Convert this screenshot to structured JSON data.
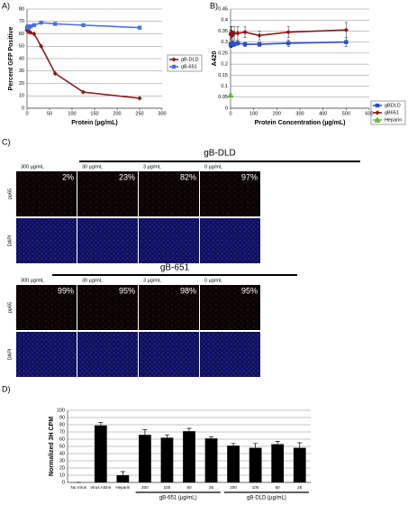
{
  "chart_data": [
    {
      "type": "line",
      "panel_label": "A)",
      "ylabel": "Percent GFP Positive",
      "xlabel": "Protein (µg/mL)",
      "xlim": [
        0,
        300
      ],
      "xticks": [
        0,
        50,
        100,
        150,
        200,
        250,
        300
      ],
      "ylim": [
        0,
        80
      ],
      "yticks": [
        0,
        10,
        20,
        30,
        40,
        50,
        60,
        70,
        80
      ],
      "grid": true,
      "legend": "right",
      "series": [
        {
          "name": "gB-DLD",
          "color": "#8b1a1a",
          "marker": "diamond",
          "x": [
            0,
            1.95,
            3.9,
            7.8,
            15.6,
            31.25,
            62.5,
            125,
            250
          ],
          "values": [
            63,
            62,
            62,
            61,
            60,
            50,
            28,
            13,
            8
          ]
        },
        {
          "name": "gB-651",
          "color": "#4a6fe3",
          "marker": "square",
          "x": [
            0,
            1.95,
            3.9,
            7.8,
            15.6,
            31.25,
            62.5,
            125,
            250
          ],
          "values": [
            65,
            66,
            65,
            66,
            67,
            69,
            68,
            67,
            65
          ]
        }
      ]
    },
    {
      "type": "line",
      "panel_label": "B)",
      "ylabel": "A420",
      "xlabel": "Protein Concentration (µg/mL)",
      "xlim": [
        0,
        600
      ],
      "xticks": [
        0,
        100,
        200,
        300,
        400,
        500,
        600
      ],
      "ylim": [
        0,
        0.45
      ],
      "yticks": [
        0,
        0.05,
        0.1,
        0.15,
        0.2,
        0.25,
        0.3,
        0.35,
        0.4,
        0.45
      ],
      "grid": true,
      "legend": "right",
      "series": [
        {
          "name": "gBDLD",
          "color": "#2a4fd0",
          "marker": "square",
          "x": [
            0,
            2,
            4,
            8,
            16,
            31,
            62.5,
            125,
            250,
            500
          ],
          "values": [
            0.29,
            0.285,
            0.29,
            0.295,
            0.29,
            0.295,
            0.29,
            0.29,
            0.295,
            0.3
          ],
          "errors": [
            0.01,
            0.01,
            0.01,
            0.01,
            0.01,
            0.01,
            0.01,
            0.01,
            0.015,
            0.02
          ]
        },
        {
          "name": "gB651",
          "color": "#8b1a1a",
          "marker": "diamond",
          "x": [
            0,
            2,
            4,
            8,
            16,
            31,
            62.5,
            125,
            250,
            500
          ],
          "values": [
            0.335,
            0.34,
            0.345,
            0.33,
            0.34,
            0.34,
            0.345,
            0.33,
            0.345,
            0.355
          ],
          "errors": [
            0.02,
            0.03,
            0.025,
            0.02,
            0.03,
            0.03,
            0.025,
            0.02,
            0.025,
            0.035
          ]
        },
        {
          "name": "Heparin",
          "color": "#6fbf3f",
          "marker": "triangle",
          "x": [
            0
          ],
          "values": [
            0.06
          ]
        }
      ]
    },
    {
      "type": "bar",
      "panel_label": "D)",
      "ylabel": "Normalized 3H CPM",
      "color": "#000000",
      "ylim": [
        0,
        100
      ],
      "yticks": [
        0,
        10,
        20,
        30,
        40,
        50,
        60,
        70,
        80,
        90,
        100
      ],
      "grid": true,
      "categories": [
        "No Virus",
        "Virus Alone",
        "Heparin",
        "200",
        "100",
        "50",
        "25",
        "200",
        "100",
        "50",
        "25"
      ],
      "values": [
        0,
        79,
        10,
        66,
        62,
        71,
        61,
        51,
        48,
        53,
        48
      ],
      "errors": [
        0,
        4,
        5,
        7,
        4,
        4,
        2,
        3,
        6,
        4,
        7
      ],
      "group_labels": [
        "gB-651 (µg/mL)",
        "gB-DLD (µg/mL)"
      ]
    }
  ],
  "panel_c": {
    "label": "C)",
    "rows": [
      "pp65",
      "DAPI"
    ],
    "groups": [
      {
        "title": "gB-DLD",
        "concentrations": [
          "300 µg/mL",
          "30 µg/mL",
          "3 µg/mL",
          "0 µg/mL"
        ],
        "percentages": [
          "2%",
          "23%",
          "82%",
          "97%"
        ]
      },
      {
        "title": "gB-651",
        "concentrations": [
          "300 µg/mL",
          "30 µg/mL",
          "3 µg/mL",
          "0 µg/mL"
        ],
        "percentages": [
          "99%",
          "95%",
          "98%",
          "95%"
        ]
      }
    ]
  }
}
